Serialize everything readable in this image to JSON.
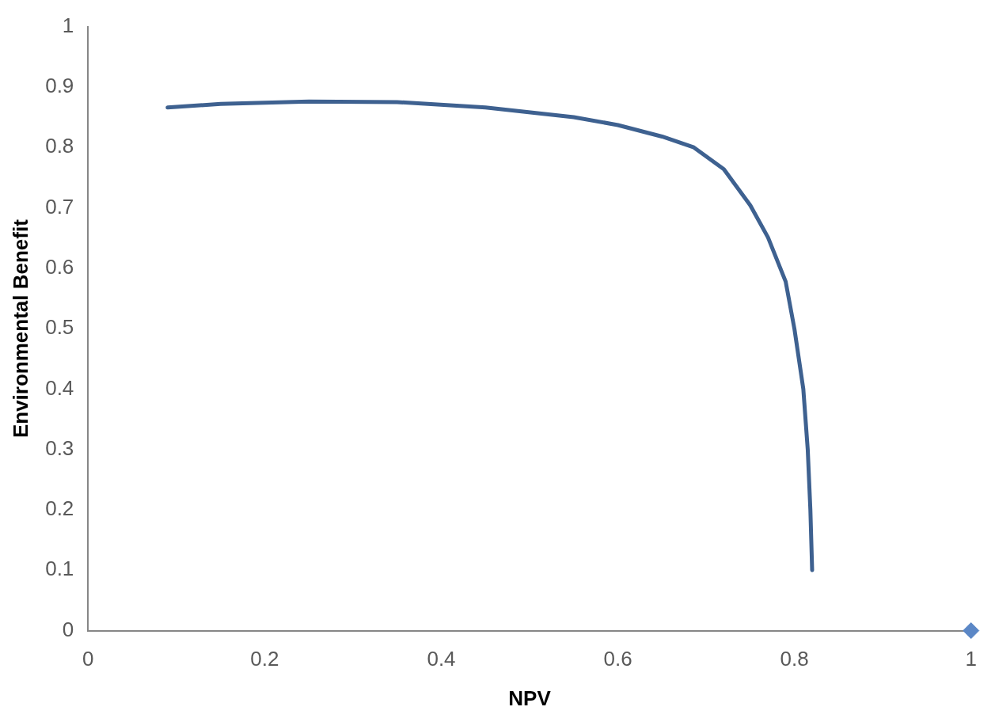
{
  "chart_data": {
    "type": "line",
    "xlabel": "NPV",
    "ylabel": "Environmental Benefit",
    "xlim": [
      0,
      1
    ],
    "xticks": [
      0,
      0.2,
      0.4,
      0.6,
      0.8,
      1
    ],
    "ylim": [
      0,
      1
    ],
    "yticks": [
      0,
      0.1,
      0.2,
      0.3,
      0.4,
      0.5,
      0.6,
      0.7,
      0.8,
      0.9,
      1
    ],
    "grid": false,
    "legend": false,
    "series": [
      {
        "type": "line",
        "color": "#3e6190",
        "marker": "none",
        "line_style": "solid",
        "x": [
          0.09,
          0.15,
          0.25,
          0.35,
          0.45,
          0.55,
          0.6,
          0.65,
          0.686,
          0.72,
          0.75,
          0.77,
          0.79,
          0.8,
          0.81,
          0.815,
          0.818,
          0.82
        ],
        "values": [
          0.866,
          0.872,
          0.876,
          0.875,
          0.866,
          0.85,
          0.837,
          0.818,
          0.8,
          0.764,
          0.704,
          0.651,
          0.578,
          0.499,
          0.4,
          0.3,
          0.2,
          0.1
        ]
      },
      {
        "type": "scatter",
        "color": "#5b87c6",
        "marker": "diamond",
        "x": [
          1
        ],
        "values": [
          0
        ]
      }
    ]
  }
}
